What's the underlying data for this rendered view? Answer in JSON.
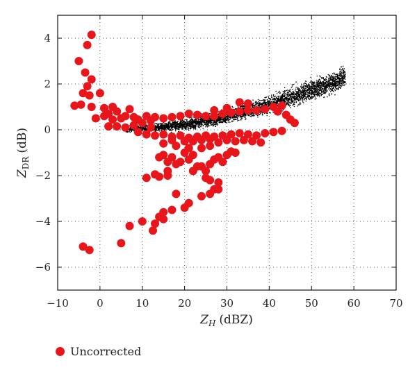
{
  "chart_data": {
    "type": "scatter",
    "xlabel": {
      "main": "Z",
      "sub": "H",
      "unit": "(dBZ)"
    },
    "ylabel": {
      "main": "Z",
      "sub": "DR",
      "unit": "(dB)"
    },
    "xlim": [
      -10,
      70
    ],
    "ylim": [
      -7,
      5
    ],
    "xticks": [
      -10,
      0,
      10,
      20,
      30,
      40,
      50,
      60,
      70
    ],
    "yticks": [
      -6,
      -4,
      -2,
      0,
      2,
      4
    ],
    "xtick_labels": [
      "−10",
      "0",
      "10",
      "20",
      "30",
      "40",
      "50",
      "60",
      "70"
    ],
    "ytick_labels": [
      "−6",
      "−4",
      "−2",
      "0",
      "2",
      "4"
    ],
    "grid": "dotted",
    "legend_position": "bottom-left",
    "series": [
      {
        "name": "",
        "color": "#000000",
        "marker": "small-dot",
        "trend_points": [
          [
            6,
            0.02
          ],
          [
            10,
            0.06
          ],
          [
            15,
            0.12
          ],
          [
            20,
            0.22
          ],
          [
            25,
            0.38
          ],
          [
            30,
            0.6
          ],
          [
            35,
            0.85
          ],
          [
            40,
            1.1
          ],
          [
            45,
            1.4
          ],
          [
            50,
            1.75
          ],
          [
            55,
            2.05
          ],
          [
            58,
            2.3
          ]
        ],
        "spread_band_db": [
          0.2,
          0.8
        ]
      },
      {
        "name": "Uncorrected",
        "color": "#e8151b",
        "marker": "large-dot",
        "points": [
          [
            -2,
            4.15
          ],
          [
            -3,
            3.7
          ],
          [
            -5,
            3
          ],
          [
            -3.5,
            2.5
          ],
          [
            -2,
            2.2
          ],
          [
            -3,
            1.9
          ],
          [
            -4,
            1.6
          ],
          [
            -2.5,
            1.5
          ],
          [
            0,
            1.6
          ],
          [
            -6,
            1.05
          ],
          [
            -4.5,
            1.1
          ],
          [
            -2,
            1.0
          ],
          [
            1,
            0.95
          ],
          [
            3,
            1.0
          ],
          [
            4,
            0.8
          ],
          [
            2,
            0.7
          ],
          [
            -1,
            0.5
          ],
          [
            1,
            0.6
          ],
          [
            3,
            0.45
          ],
          [
            5,
            0.5
          ],
          [
            2,
            0.15
          ],
          [
            4,
            0.15
          ],
          [
            6,
            0.1
          ],
          [
            8,
            0.2
          ],
          [
            10,
            0.3
          ],
          [
            12,
            0.1
          ],
          [
            6,
            0.6
          ],
          [
            7,
            0.9
          ],
          [
            8,
            0.55
          ],
          [
            9,
            0.45
          ],
          [
            11,
            0.6
          ],
          [
            13,
            0.55
          ],
          [
            12,
            0.4
          ],
          [
            15,
            0.5
          ],
          [
            17,
            0.55
          ],
          [
            19,
            0.6
          ],
          [
            21,
            0.7
          ],
          [
            23,
            0.65
          ],
          [
            25,
            0.6
          ],
          [
            27,
            0.6
          ],
          [
            29,
            0.7
          ],
          [
            31,
            0.75
          ],
          [
            33,
            0.8
          ],
          [
            35,
            0.85
          ],
          [
            37,
            0.85
          ],
          [
            39,
            0.9
          ],
          [
            41,
            1.0
          ],
          [
            43,
            1.05
          ],
          [
            42,
            0.8
          ],
          [
            44,
            0.65
          ],
          [
            45,
            0.45
          ],
          [
            46,
            0.3
          ],
          [
            33,
            1.2
          ],
          [
            35,
            1.15
          ],
          [
            30,
            0.95
          ],
          [
            27,
            0.85
          ],
          [
            9,
            -0.1
          ],
          [
            11,
            -0.2
          ],
          [
            13,
            -0.25
          ],
          [
            15,
            -0.2
          ],
          [
            17,
            -0.3
          ],
          [
            19,
            -0.25
          ],
          [
            21,
            -0.35
          ],
          [
            23,
            -0.3
          ],
          [
            25,
            -0.25
          ],
          [
            27,
            -0.3
          ],
          [
            29,
            -0.25
          ],
          [
            31,
            -0.2
          ],
          [
            33,
            -0.15
          ],
          [
            35,
            -0.2
          ],
          [
            37,
            -0.25
          ],
          [
            39,
            -0.15
          ],
          [
            41,
            -0.1
          ],
          [
            43,
            -0.05
          ],
          [
            15,
            -0.6
          ],
          [
            18,
            -0.7
          ],
          [
            21,
            -0.8
          ],
          [
            24,
            -0.8
          ],
          [
            26,
            -0.7
          ],
          [
            28,
            -0.55
          ],
          [
            30,
            -0.45
          ],
          [
            32,
            -0.5
          ],
          [
            34,
            -0.45
          ],
          [
            36,
            -0.5
          ],
          [
            38,
            -0.55
          ],
          [
            20,
            -0.5
          ],
          [
            22,
            -0.5
          ],
          [
            24,
            -0.45
          ],
          [
            26,
            -0.4
          ],
          [
            17,
            -0.45
          ],
          [
            14,
            -1.2
          ],
          [
            15,
            -1.1
          ],
          [
            16,
            -1.4
          ],
          [
            17,
            -1.2
          ],
          [
            18,
            -1.5
          ],
          [
            19,
            -1.4
          ],
          [
            20,
            -1.0
          ],
          [
            21,
            -1.3
          ],
          [
            22,
            -1.1
          ],
          [
            24,
            -1.6
          ],
          [
            25,
            -1.8
          ],
          [
            26,
            -1.5
          ],
          [
            27,
            -1.3
          ],
          [
            28,
            -1.2
          ],
          [
            29,
            -1.4
          ],
          [
            30,
            -1.1
          ],
          [
            31,
            -0.95
          ],
          [
            32,
            -1.0
          ],
          [
            22,
            -1.8
          ],
          [
            23,
            -1.6
          ],
          [
            25,
            -2.1
          ],
          [
            26,
            -2.2
          ],
          [
            27,
            -2.6
          ],
          [
            28,
            -2.6
          ],
          [
            28,
            -2.3
          ],
          [
            26,
            -2.8
          ],
          [
            24,
            -2.9
          ],
          [
            21,
            -3.2
          ],
          [
            20,
            -3.4
          ],
          [
            18,
            -2.8
          ],
          [
            17,
            -3.5
          ],
          [
            15,
            -3.9
          ],
          [
            15,
            -3.6
          ],
          [
            14,
            -3.8
          ],
          [
            13,
            -4.1
          ],
          [
            12.5,
            -4.4
          ],
          [
            11,
            -2.1
          ],
          [
            13,
            -1.95
          ],
          [
            16,
            -2.0
          ],
          [
            16,
            -1.8
          ],
          [
            14,
            -2.05
          ],
          [
            10,
            -4.0
          ],
          [
            7,
            -4.2
          ],
          [
            5,
            -4.95
          ],
          [
            -4,
            -5.1
          ],
          [
            -2.5,
            -5.25
          ]
        ]
      }
    ]
  }
}
